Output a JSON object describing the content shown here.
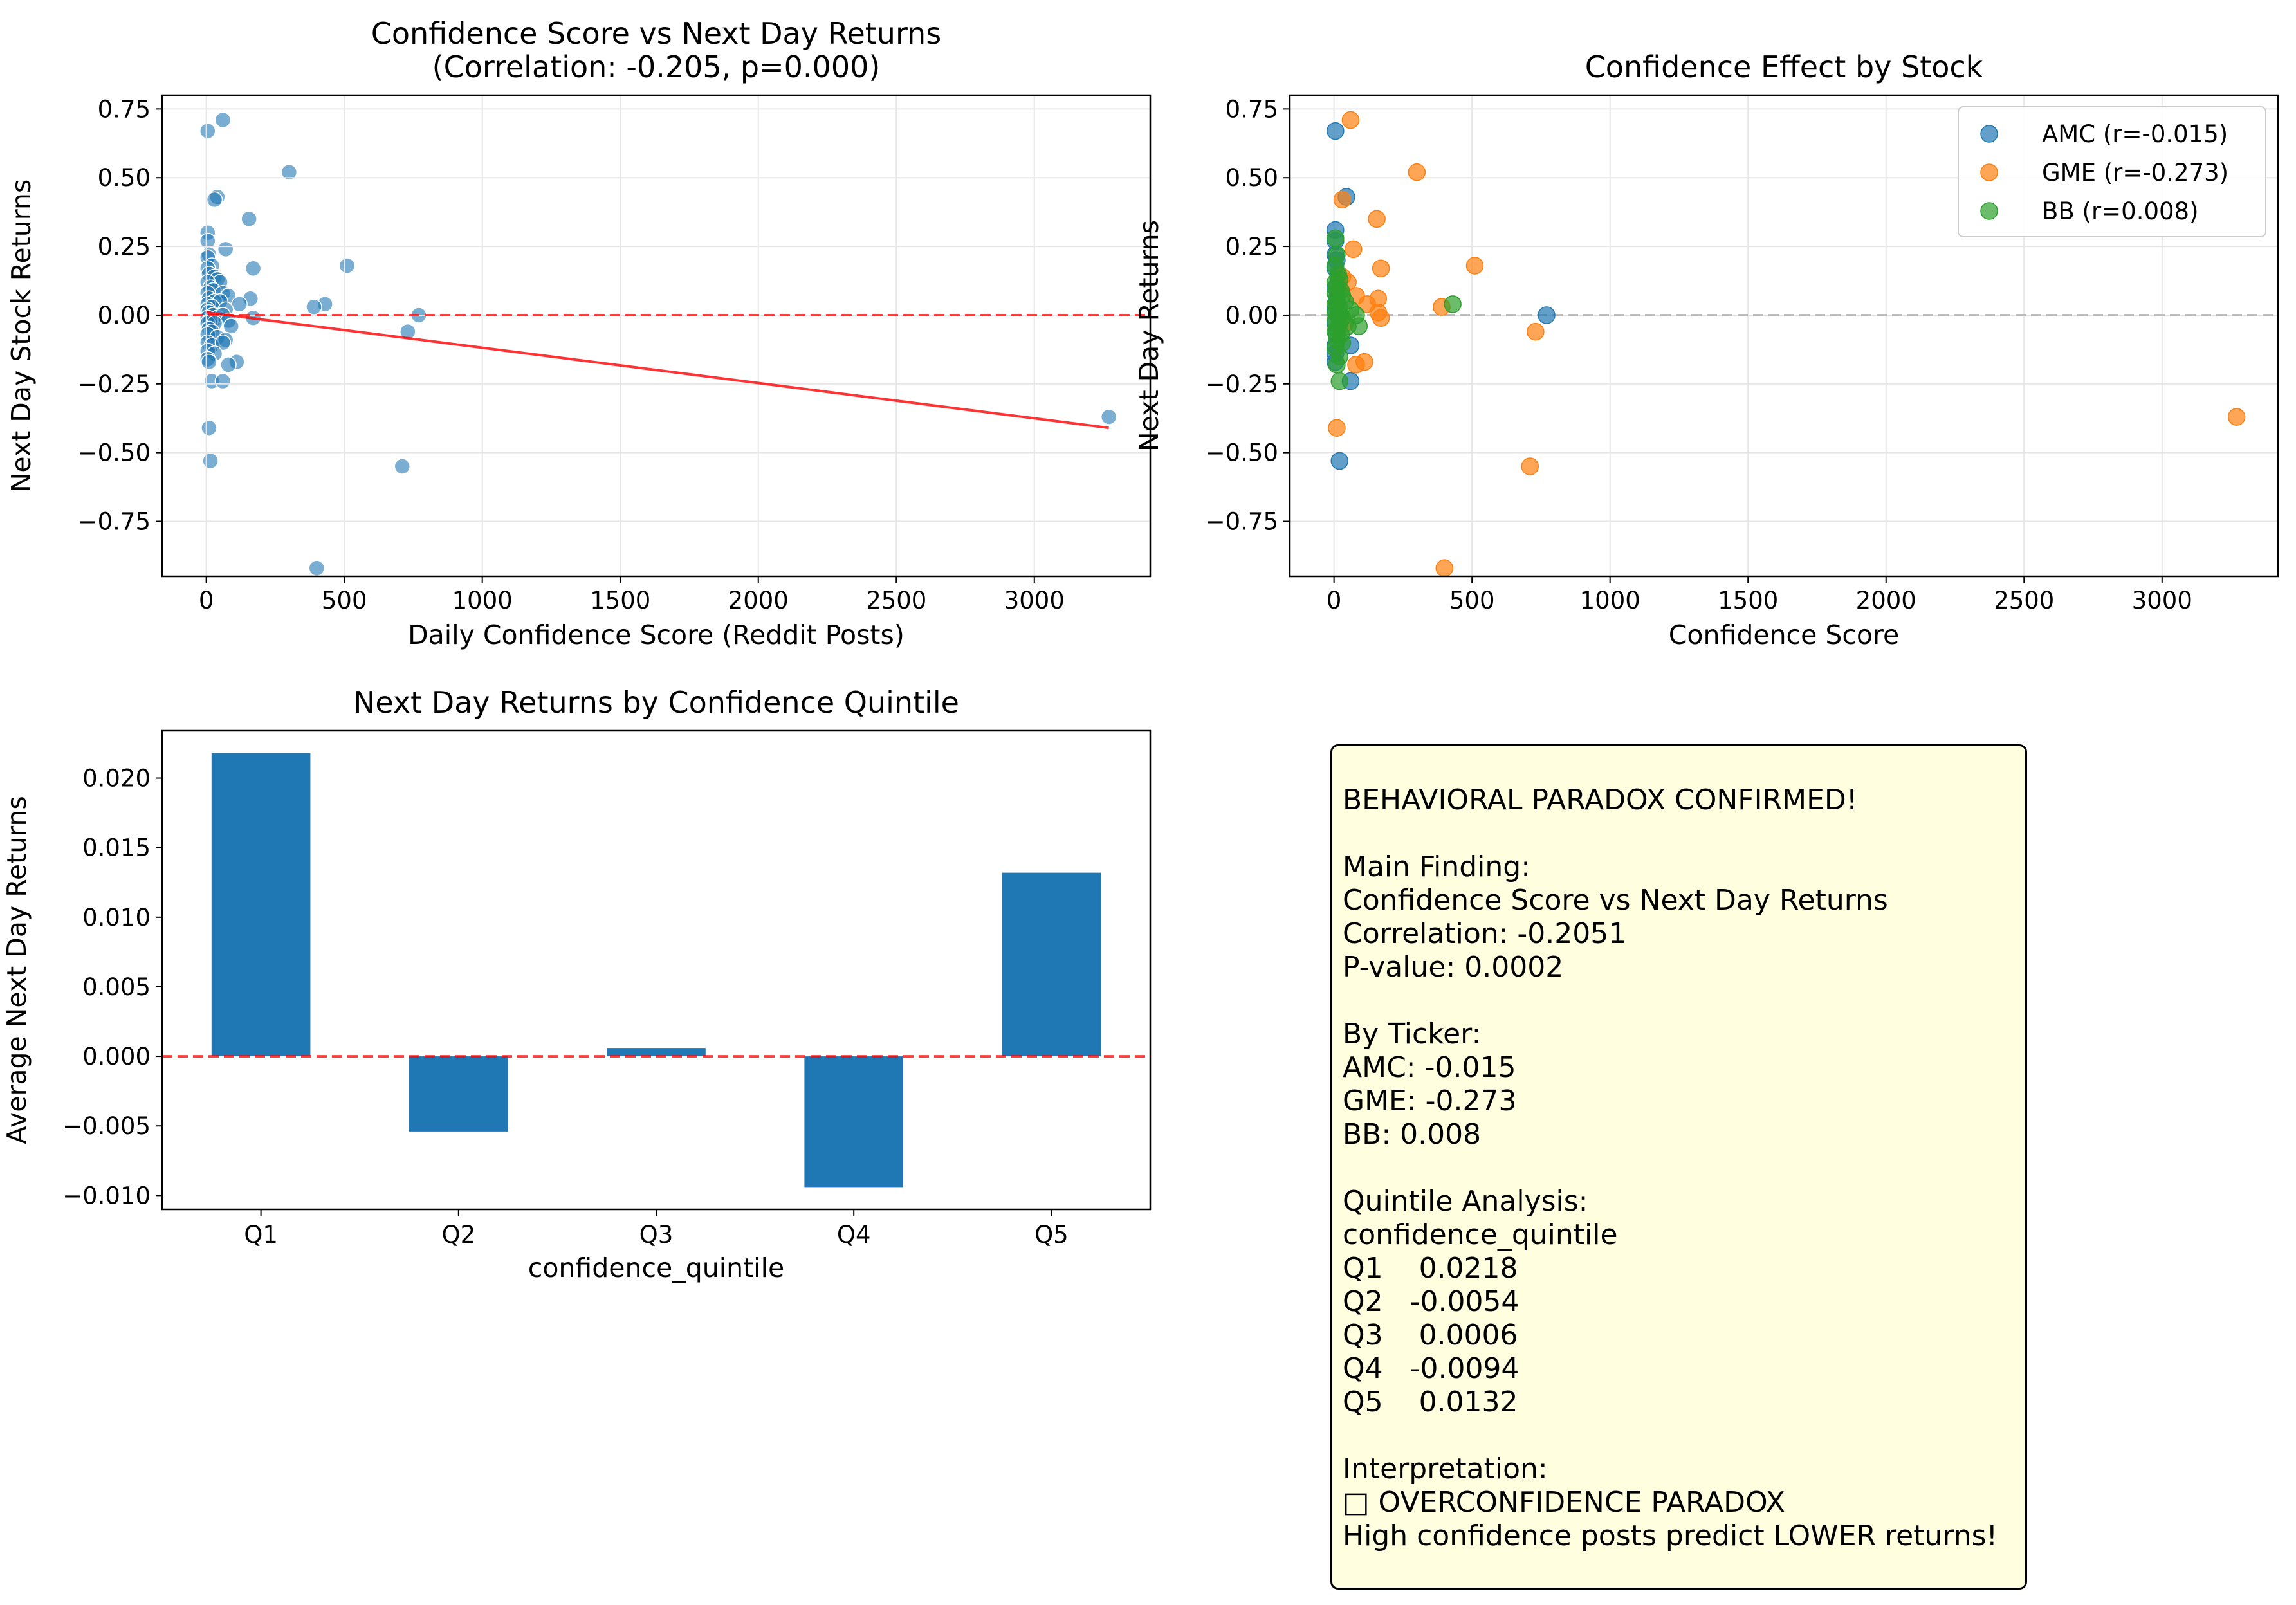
{
  "chart_data": [
    {
      "type": "scatter",
      "title": "Confidence Score vs Next Day Returns\n(Correlation: -0.205, p=0.000)",
      "xlabel": "Daily Confidence Score (Reddit Posts)",
      "ylabel": "Next Day Stock Returns",
      "xlim": [
        -160,
        3420
      ],
      "ylim": [
        -0.95,
        0.8
      ],
      "xticks": [
        0,
        500,
        1000,
        1500,
        2000,
        2500,
        3000
      ],
      "yticks": [
        -0.75,
        -0.5,
        -0.25,
        0.0,
        0.25,
        0.5,
        0.75
      ],
      "xtick_labels": [
        "0",
        "500",
        "1000",
        "1500",
        "2000",
        "2500",
        "3000"
      ],
      "ytick_labels": [
        "−0.75",
        "−0.50",
        "−0.25",
        "0.00",
        "0.25",
        "0.50",
        "0.75"
      ],
      "grid": true,
      "color": "#1f77b4",
      "reference_line": {
        "y": 0.0,
        "style": "dashed",
        "color": "#ff0000"
      },
      "fit_line": {
        "x": [
          0,
          3270
        ],
        "y": [
          0.01,
          -0.41
        ],
        "color": "#ff0000"
      },
      "points": [
        [
          5,
          0.67
        ],
        [
          60,
          0.71
        ],
        [
          40,
          0.43
        ],
        [
          30,
          0.42
        ],
        [
          300,
          0.52
        ],
        [
          155,
          0.35
        ],
        [
          5,
          0.3
        ],
        [
          5,
          0.27
        ],
        [
          70,
          0.24
        ],
        [
          10,
          0.22
        ],
        [
          5,
          0.21
        ],
        [
          20,
          0.18
        ],
        [
          5,
          0.17
        ],
        [
          170,
          0.17
        ],
        [
          510,
          0.18
        ],
        [
          10,
          0.15
        ],
        [
          30,
          0.14
        ],
        [
          40,
          0.13
        ],
        [
          50,
          0.12
        ],
        [
          5,
          0.12
        ],
        [
          15,
          0.1
        ],
        [
          25,
          0.09
        ],
        [
          60,
          0.08
        ],
        [
          80,
          0.07
        ],
        [
          5,
          0.08
        ],
        [
          160,
          0.06
        ],
        [
          10,
          0.06
        ],
        [
          30,
          0.05
        ],
        [
          50,
          0.05
        ],
        [
          120,
          0.04
        ],
        [
          430,
          0.04
        ],
        [
          5,
          0.04
        ],
        [
          20,
          0.03
        ],
        [
          70,
          0.02
        ],
        [
          390,
          0.03
        ],
        [
          5,
          0.02
        ],
        [
          10,
          0.01
        ],
        [
          25,
          0.0
        ],
        [
          40,
          -0.01
        ],
        [
          60,
          0.0
        ],
        [
          770,
          0.0
        ],
        [
          5,
          -0.01
        ],
        [
          15,
          -0.02
        ],
        [
          80,
          -0.02
        ],
        [
          170,
          -0.01
        ],
        [
          5,
          -0.03
        ],
        [
          30,
          -0.03
        ],
        [
          90,
          -0.04
        ],
        [
          10,
          -0.05
        ],
        [
          20,
          -0.06
        ],
        [
          730,
          -0.06
        ],
        [
          5,
          -0.07
        ],
        [
          40,
          -0.08
        ],
        [
          70,
          -0.09
        ],
        [
          5,
          -0.1
        ],
        [
          20,
          -0.11
        ],
        [
          60,
          -0.1
        ],
        [
          5,
          -0.13
        ],
        [
          30,
          -0.14
        ],
        [
          5,
          -0.16
        ],
        [
          10,
          -0.17
        ],
        [
          110,
          -0.17
        ],
        [
          80,
          -0.18
        ],
        [
          20,
          -0.24
        ],
        [
          60,
          -0.24
        ],
        [
          3270,
          -0.37
        ],
        [
          10,
          -0.41
        ],
        [
          15,
          -0.53
        ],
        [
          710,
          -0.55
        ],
        [
          400,
          -0.92
        ]
      ]
    },
    {
      "type": "scatter",
      "title": "Confidence Effect by Stock",
      "xlabel": "Confidence Score",
      "ylabel": "Next Day Returns",
      "xlim": [
        -160,
        3420
      ],
      "ylim": [
        -0.95,
        0.8
      ],
      "xticks": [
        0,
        500,
        1000,
        1500,
        2000,
        2500,
        3000
      ],
      "yticks": [
        -0.75,
        -0.5,
        -0.25,
        0.0,
        0.25,
        0.5,
        0.75
      ],
      "xtick_labels": [
        "0",
        "500",
        "1000",
        "1500",
        "2000",
        "2500",
        "3000"
      ],
      "ytick_labels": [
        "−0.75",
        "−0.50",
        "−0.25",
        "0.00",
        "0.25",
        "0.50",
        "0.75"
      ],
      "grid": true,
      "legend_position": "top-right",
      "reference_line": {
        "y": 0.0,
        "style": "dashed",
        "color": "#aaaaaa"
      },
      "series": [
        {
          "name": "AMC (r=-0.015)",
          "color": "#1f77b4",
          "points": [
            [
              5,
              0.67
            ],
            [
              5,
              0.31
            ],
            [
              5,
              0.27
            ],
            [
              5,
              0.22
            ],
            [
              10,
              0.2
            ],
            [
              5,
              0.17
            ],
            [
              15,
              0.14
            ],
            [
              5,
              0.1
            ],
            [
              10,
              0.06
            ],
            [
              5,
              0.02
            ],
            [
              20,
              0.0
            ],
            [
              5,
              -0.03
            ],
            [
              10,
              -0.07
            ],
            [
              5,
              -0.11
            ],
            [
              5,
              -0.14
            ],
            [
              5,
              -0.17
            ],
            [
              60,
              -0.11
            ],
            [
              60,
              -0.24
            ],
            [
              20,
              -0.53
            ],
            [
              45,
              0.43
            ],
            [
              770,
              0.0
            ]
          ]
        },
        {
          "name": "GME (r=-0.273)",
          "color": "#ff7f0e",
          "points": [
            [
              60,
              0.71
            ],
            [
              30,
              0.42
            ],
            [
              300,
              0.52
            ],
            [
              155,
              0.35
            ],
            [
              70,
              0.24
            ],
            [
              170,
              0.17
            ],
            [
              510,
              0.18
            ],
            [
              30,
              0.14
            ],
            [
              50,
              0.12
            ],
            [
              80,
              0.07
            ],
            [
              160,
              0.06
            ],
            [
              120,
              0.04
            ],
            [
              390,
              0.03
            ],
            [
              160,
              0.01
            ],
            [
              170,
              -0.01
            ],
            [
              730,
              -0.06
            ],
            [
              110,
              -0.17
            ],
            [
              80,
              -0.18
            ],
            [
              3270,
              -0.37
            ],
            [
              10,
              -0.41
            ],
            [
              710,
              -0.55
            ],
            [
              400,
              -0.92
            ],
            [
              20,
              0.1
            ],
            [
              40,
              -0.03
            ]
          ]
        },
        {
          "name": "BB (r=0.008)",
          "color": "#2ca02c",
          "points": [
            [
              5,
              0.28
            ],
            [
              10,
              0.22
            ],
            [
              5,
              0.18
            ],
            [
              15,
              0.15
            ],
            [
              20,
              0.13
            ],
            [
              5,
              0.12
            ],
            [
              10,
              0.1
            ],
            [
              25,
              0.09
            ],
            [
              5,
              0.08
            ],
            [
              30,
              0.07
            ],
            [
              10,
              0.05
            ],
            [
              5,
              0.04
            ],
            [
              40,
              0.05
            ],
            [
              20,
              0.03
            ],
            [
              60,
              0.02
            ],
            [
              5,
              0.01
            ],
            [
              15,
              0.0
            ],
            [
              30,
              -0.01
            ],
            [
              80,
              0.0
            ],
            [
              5,
              -0.02
            ],
            [
              20,
              -0.03
            ],
            [
              50,
              -0.04
            ],
            [
              10,
              -0.05
            ],
            [
              5,
              -0.06
            ],
            [
              25,
              -0.07
            ],
            [
              90,
              -0.04
            ],
            [
              10,
              -0.09
            ],
            [
              30,
              -0.1
            ],
            [
              5,
              -0.12
            ],
            [
              20,
              -0.15
            ],
            [
              10,
              -0.18
            ],
            [
              20,
              -0.24
            ],
            [
              430,
              0.04
            ]
          ]
        }
      ]
    },
    {
      "type": "bar",
      "title": "Next Day Returns by Confidence Quintile",
      "xlabel": "confidence_quintile",
      "ylabel": "Average Next Day Returns",
      "categories": [
        "Q1",
        "Q2",
        "Q3",
        "Q4",
        "Q5"
      ],
      "values": [
        0.0218,
        -0.0054,
        0.0006,
        -0.0094,
        0.0132
      ],
      "ylim": [
        -0.011,
        0.0234
      ],
      "yticks": [
        -0.01,
        -0.005,
        0.0,
        0.005,
        0.01,
        0.015,
        0.02
      ],
      "ytick_labels": [
        "−0.010",
        "−0.005",
        "0.000",
        "0.005",
        "0.010",
        "0.015",
        "0.020"
      ],
      "grid": false,
      "color": "#1f77b4",
      "reference_line": {
        "y": 0.0,
        "style": "dashed",
        "color": "#ff0000"
      }
    }
  ],
  "summary": {
    "lines": [
      "BEHAVIORAL PARADOX CONFIRMED!",
      "",
      "Main Finding:",
      "Confidence Score vs Next Day Returns",
      "Correlation: -0.2051",
      "P-value: 0.0002",
      "",
      "By Ticker:",
      "AMC: -0.015",
      "GME: -0.273",
      "BB: 0.008",
      "",
      "Quintile Analysis:",
      "confidence_quintile",
      "Q1    0.0218",
      "Q2   -0.0054",
      "Q3    0.0006",
      "Q4   -0.0094",
      "Q5    0.0132",
      "",
      "Interpretation:",
      "□ OVERCONFIDENCE PARADOX",
      "High confidence posts predict LOWER returns!"
    ]
  }
}
